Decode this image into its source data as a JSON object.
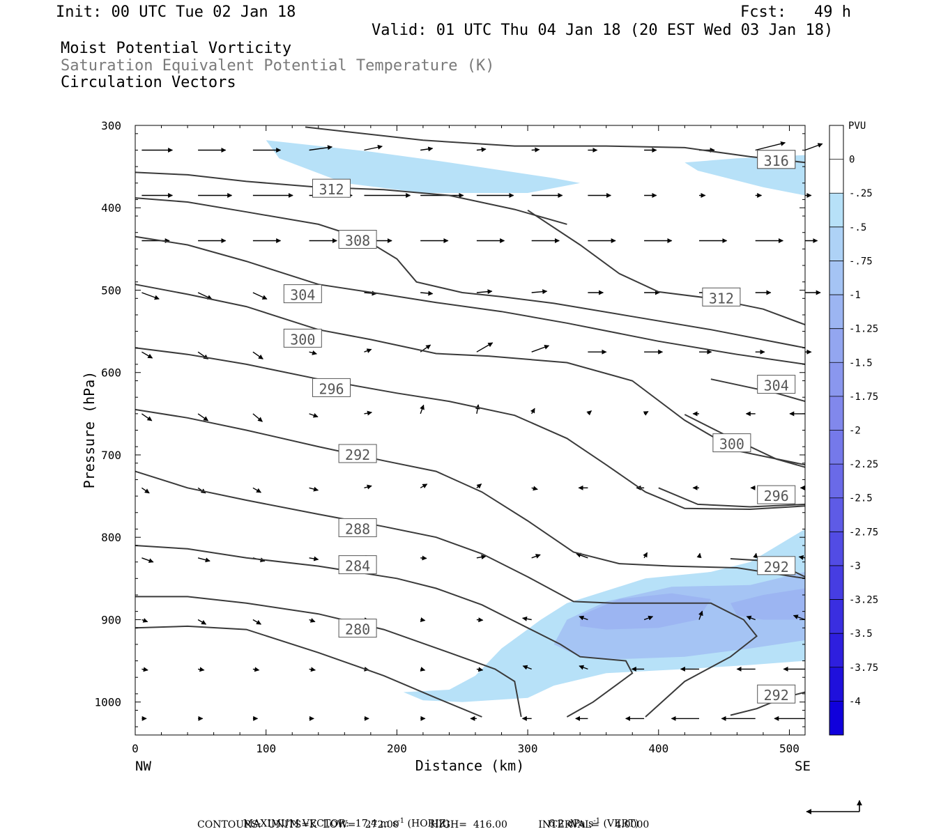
{
  "header": {
    "init": "Init: 00 UTC Tue 02 Jan 18",
    "fcst": "Fcst:   49 h",
    "valid": "Valid: 01 UTC Thu 04 Jan 18 (20 EST Wed 03 Jan 18)",
    "field1": "Moist Potential Vorticity",
    "field2": "Saturation Equivalent Potential Temperature (K)",
    "field3": "Circulation Vectors"
  },
  "chart_data": {
    "type": "cross-section",
    "xlabel": "Distance (km)",
    "ylabel": "Pressure (hPa)",
    "xlim": [
      0,
      512
    ],
    "ylim": [
      1040,
      300
    ],
    "x_ticks": [
      "0",
      "100",
      "200",
      "300",
      "400",
      "500"
    ],
    "x_tick_values": [
      0,
      100,
      200,
      300,
      400,
      500
    ],
    "y_ticks": [
      "300",
      "400",
      "500",
      "600",
      "700",
      "800",
      "900",
      "1000"
    ],
    "y_tick_values": [
      300,
      400,
      500,
      600,
      700,
      800,
      900,
      1000
    ],
    "left_end": "NW",
    "right_end": "SE",
    "colorbar": {
      "units": "PVU",
      "levels": [
        "0",
        "-.25",
        "-.5",
        "-.75",
        "-1",
        "-1.25",
        "-1.5",
        "-1.75",
        "-2",
        "-2.25",
        "-2.5",
        "-2.75",
        "-3",
        "-3.25",
        "-3.5",
        "-3.75",
        "-4"
      ],
      "colors": [
        "#ffffff",
        "#ffffff",
        "#b7e1f8",
        "#aed2f6",
        "#a5c4f4",
        "#9cb5f2",
        "#93a6f0",
        "#8a97ee",
        "#8188ec",
        "#7579ea",
        "#6a6ae8",
        "#5e5be6",
        "#524ce4",
        "#463de2",
        "#3a2ee0",
        "#2e1fde",
        "#1f10dc",
        "#1000dc"
      ]
    },
    "theta_contours": [
      {
        "level": 280,
        "label": "280",
        "label_at": [
          170,
          912
        ],
        "points": [
          [
            0,
            910
          ],
          [
            40,
            908
          ],
          [
            85,
            912
          ],
          [
            140,
            940
          ],
          [
            190,
            968
          ],
          [
            230,
            995
          ],
          [
            265,
            1018
          ]
        ]
      },
      {
        "level": 284,
        "label": "284",
        "label_at": [
          170,
          835
        ],
        "points": [
          [
            0,
            872
          ],
          [
            40,
            872
          ],
          [
            85,
            880
          ],
          [
            140,
            893
          ],
          [
            190,
            912
          ],
          [
            240,
            940
          ],
          [
            275,
            960
          ],
          [
            290,
            975
          ],
          [
            295,
            1018
          ]
        ]
      },
      {
        "level": 288,
        "label": "288",
        "label_at": [
          170,
          790
        ],
        "points": [
          [
            0,
            810
          ],
          [
            40,
            814
          ],
          [
            85,
            825
          ],
          [
            140,
            835
          ],
          [
            200,
            850
          ],
          [
            230,
            862
          ],
          [
            265,
            882
          ],
          [
            300,
            910
          ],
          [
            325,
            930
          ],
          [
            340,
            945
          ],
          [
            375,
            950
          ],
          [
            380,
            965
          ],
          [
            350,
            1000
          ],
          [
            330,
            1018
          ]
        ]
      },
      {
        "level": 292,
        "label": "292",
        "label_at": [
          170,
          700
        ],
        "points": [
          [
            0,
            720
          ],
          [
            40,
            740
          ],
          [
            85,
            755
          ],
          [
            140,
            772
          ],
          [
            190,
            787
          ],
          [
            230,
            800
          ],
          [
            265,
            820
          ],
          [
            300,
            848
          ],
          [
            335,
            878
          ],
          [
            365,
            880
          ],
          [
            400,
            880
          ],
          [
            440,
            880
          ],
          [
            465,
            900
          ],
          [
            475,
            920
          ],
          [
            455,
            945
          ],
          [
            420,
            975
          ],
          [
            390,
            1018
          ]
        ]
      },
      {
        "level": 292,
        "label": "292",
        "label_at": [
          490,
          836
        ],
        "points": [
          [
            455,
            826
          ],
          [
            475,
            828
          ],
          [
            495,
            835
          ],
          [
            512,
            848
          ]
        ]
      },
      {
        "level": 292,
        "label": "292",
        "label_at": [
          490,
          992
        ],
        "points": [
          [
            455,
            1016
          ],
          [
            475,
            1008
          ],
          [
            495,
            995
          ],
          [
            512,
            988
          ]
        ]
      },
      {
        "level": 296,
        "label": "296",
        "label_at": [
          150,
          620
        ],
        "points": [
          [
            0,
            645
          ],
          [
            40,
            655
          ],
          [
            85,
            670
          ],
          [
            140,
            690
          ],
          [
            190,
            707
          ],
          [
            230,
            720
          ],
          [
            265,
            745
          ],
          [
            300,
            780
          ],
          [
            335,
            818
          ],
          [
            370,
            832
          ],
          [
            410,
            835
          ],
          [
            460,
            837
          ],
          [
            480,
            842
          ],
          [
            512,
            850
          ]
        ]
      },
      {
        "level": 296,
        "label": "296",
        "label_at": [
          490,
          750
        ],
        "points": [
          [
            400,
            740
          ],
          [
            430,
            760
          ],
          [
            470,
            763
          ],
          [
            512,
            760
          ]
        ]
      },
      {
        "level": 300,
        "label": "300",
        "label_at": [
          128,
          560
        ],
        "points": [
          [
            0,
            570
          ],
          [
            40,
            578
          ],
          [
            85,
            590
          ],
          [
            140,
            608
          ],
          [
            200,
            625
          ],
          [
            240,
            635
          ],
          [
            290,
            652
          ],
          [
            330,
            680
          ],
          [
            360,
            712
          ],
          [
            390,
            745
          ],
          [
            420,
            765
          ],
          [
            470,
            766
          ],
          [
            512,
            762
          ]
        ]
      },
      {
        "level": 300,
        "label": "300",
        "label_at": [
          456,
          687
        ],
        "points": [
          [
            420,
            651
          ],
          [
            450,
            675
          ],
          [
            490,
            705
          ],
          [
            512,
            715
          ]
        ]
      },
      {
        "level": 304,
        "label": "304",
        "label_at": [
          128,
          506
        ],
        "points": [
          [
            0,
            493
          ],
          [
            40,
            505
          ],
          [
            85,
            520
          ],
          [
            140,
            548
          ],
          [
            180,
            560
          ],
          [
            230,
            577
          ],
          [
            270,
            580
          ],
          [
            330,
            588
          ],
          [
            380,
            610
          ],
          [
            420,
            658
          ],
          [
            460,
            695
          ],
          [
            512,
            712
          ]
        ]
      },
      {
        "level": 304,
        "label": "304",
        "label_at": [
          490,
          616
        ],
        "points": [
          [
            440,
            608
          ],
          [
            490,
            625
          ],
          [
            512,
            635
          ]
        ]
      },
      {
        "level": 308,
        "label": "308",
        "label_at": [
          170,
          440
        ],
        "points": [
          [
            0,
            435
          ],
          [
            40,
            445
          ],
          [
            85,
            465
          ],
          [
            140,
            493
          ],
          [
            190,
            505
          ],
          [
            230,
            515
          ],
          [
            280,
            526
          ],
          [
            330,
            540
          ],
          [
            400,
            562
          ],
          [
            460,
            578
          ],
          [
            512,
            590
          ]
        ]
      },
      {
        "level": 312,
        "label": "312",
        "label_at": [
          150,
          378
        ],
        "points": [
          [
            0,
            388
          ],
          [
            40,
            393
          ],
          [
            85,
            405
          ],
          [
            140,
            420
          ],
          [
            175,
            438
          ],
          [
            200,
            462
          ],
          [
            215,
            490
          ],
          [
            250,
            503
          ],
          [
            280,
            508
          ],
          [
            320,
            516
          ],
          [
            380,
            532
          ],
          [
            440,
            548
          ],
          [
            512,
            570
          ]
        ]
      },
      {
        "level": 312,
        "label": "312",
        "label_at": [
          448,
          510
        ],
        "points": [
          [
            300,
            403
          ],
          [
            340,
            445
          ],
          [
            370,
            480
          ],
          [
            400,
            502
          ],
          [
            440,
            510
          ],
          [
            480,
            523
          ],
          [
            512,
            542
          ]
        ]
      },
      {
        "level": 316,
        "label": "316",
        "label_at": [
          490,
          343
        ],
        "points": [
          [
            0,
            357
          ],
          [
            40,
            360
          ],
          [
            85,
            368
          ],
          [
            140,
            375
          ],
          [
            190,
            378
          ],
          [
            240,
            385
          ],
          [
            290,
            402
          ],
          [
            330,
            420
          ]
        ]
      },
      {
        "level": 316,
        "label": "316",
        "label_at": [
          490,
          343
        ],
        "points": [
          [
            130,
            302
          ],
          [
            220,
            318
          ],
          [
            290,
            325
          ],
          [
            360,
            325
          ],
          [
            420,
            327
          ],
          [
            470,
            338
          ],
          [
            512,
            345
          ]
        ]
      }
    ],
    "max_vector": "MAXIMUM VECTOR:  17.4 m s",
    "max_vector_horiz": " (HORIZ)",
    "max_vector_vert": "6.2 dPa s",
    "max_vector_vert_unit": " (VERT)",
    "contours_info": "CONTOURS:  UNITS=K  LOW=   272.00          HIGH=  416.00          INTERVAL=     4.0000"
  }
}
